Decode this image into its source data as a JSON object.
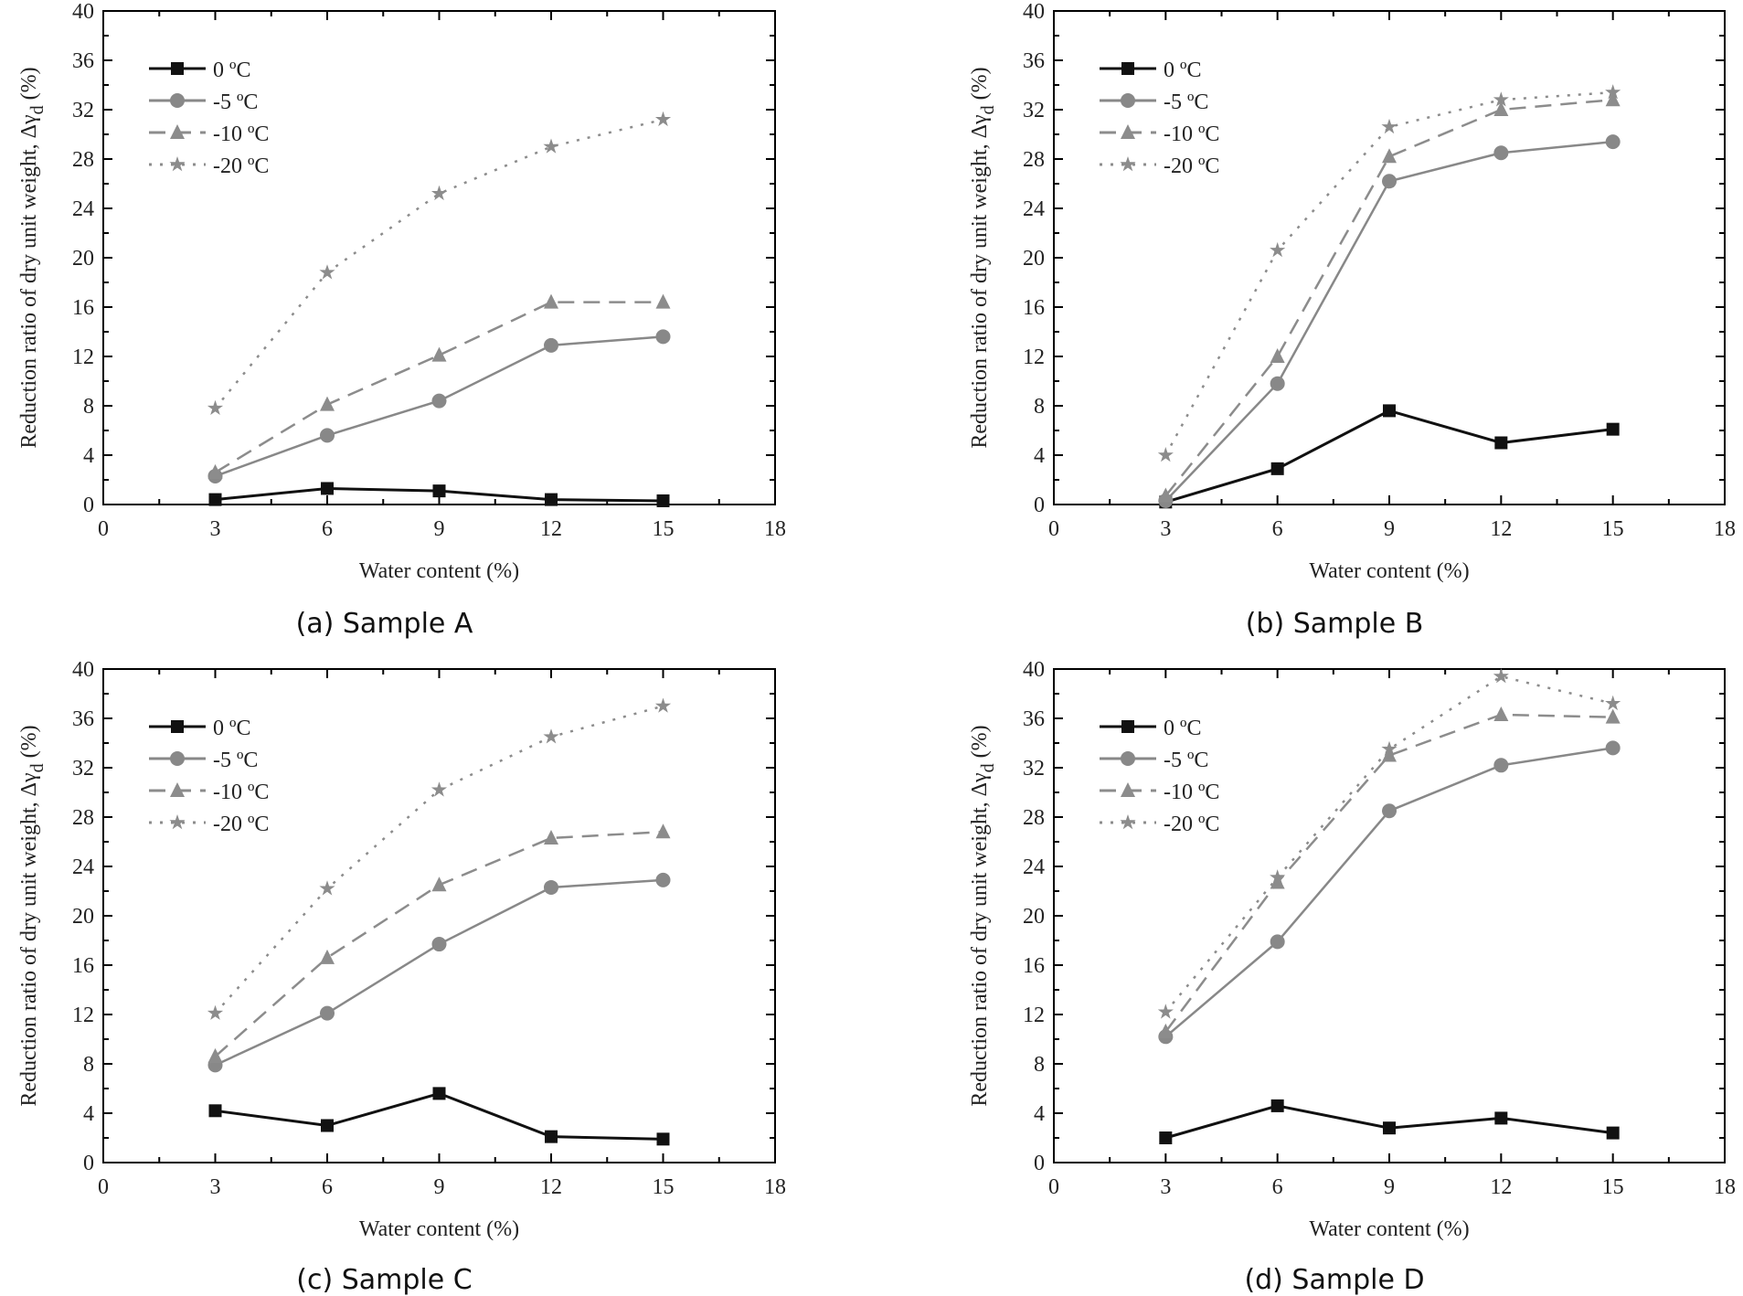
{
  "chart_data": [
    {
      "type": "line",
      "title": "(a) Sample A",
      "xlabel": "Water content (%)",
      "ylabel": {
        "main": "Reduction ratio of dry unit weight, Δγ",
        "sub": "d",
        "suffix": " (%)"
      },
      "xlim": [
        0,
        18
      ],
      "ylim": [
        0,
        40
      ],
      "xticks": [
        0,
        3,
        6,
        9,
        12,
        15,
        18
      ],
      "yticks": [
        0,
        4,
        8,
        12,
        16,
        20,
        24,
        28,
        32,
        36,
        40
      ],
      "x": [
        3,
        6,
        9,
        12,
        15
      ],
      "legend_position": "top-left",
      "series": [
        {
          "name": "0 ºC",
          "values": [
            0.4,
            1.3,
            1.1,
            0.4,
            0.3
          ]
        },
        {
          "name": "-5 ºC",
          "values": [
            2.3,
            5.6,
            8.4,
            12.9,
            13.6
          ]
        },
        {
          "name": "-10 ºC",
          "values": [
            2.6,
            8.1,
            12.1,
            16.4,
            16.4
          ]
        },
        {
          "name": "-20 ºC",
          "values": [
            7.8,
            18.8,
            25.2,
            29.0,
            31.2
          ]
        }
      ]
    },
    {
      "type": "line",
      "title": "(b) Sample B",
      "xlabel": "Water content (%)",
      "ylabel": {
        "main": "Reduction ratio of dry unit weight, Δγ",
        "sub": "d",
        "suffix": " (%)"
      },
      "xlim": [
        0,
        18
      ],
      "ylim": [
        0,
        40
      ],
      "xticks": [
        0,
        3,
        6,
        9,
        12,
        15,
        18
      ],
      "yticks": [
        0,
        4,
        8,
        12,
        16,
        20,
        24,
        28,
        32,
        36,
        40
      ],
      "x": [
        3,
        6,
        9,
        12,
        15
      ],
      "legend_position": "top-left",
      "series": [
        {
          "name": "0 ºC",
          "values": [
            0.2,
            2.9,
            7.6,
            5.0,
            6.1
          ]
        },
        {
          "name": "-5 ºC",
          "values": [
            0.3,
            9.8,
            26.2,
            28.5,
            29.4
          ]
        },
        {
          "name": "-10 ºC",
          "values": [
            0.7,
            12.0,
            28.2,
            32.0,
            32.8
          ]
        },
        {
          "name": "-20 ºC",
          "values": [
            4.0,
            20.6,
            30.6,
            32.8,
            33.4
          ]
        }
      ]
    },
    {
      "type": "line",
      "title": "(c) Sample C",
      "xlabel": "Water content (%)",
      "ylabel": {
        "main": "Reduction ratio of dry unit weight, Δγ",
        "sub": "d",
        "suffix": " (%)"
      },
      "xlim": [
        0,
        18
      ],
      "ylim": [
        0,
        40
      ],
      "xticks": [
        0,
        3,
        6,
        9,
        12,
        15,
        18
      ],
      "yticks": [
        0,
        4,
        8,
        12,
        16,
        20,
        24,
        28,
        32,
        36,
        40
      ],
      "x": [
        3,
        6,
        9,
        12,
        15
      ],
      "legend_position": "top-left",
      "series": [
        {
          "name": "0 ºC",
          "values": [
            4.2,
            3.0,
            5.6,
            2.1,
            1.9
          ]
        },
        {
          "name": "-5 ºC",
          "values": [
            7.9,
            12.1,
            17.7,
            22.3,
            22.9
          ]
        },
        {
          "name": "-10 ºC",
          "values": [
            8.6,
            16.6,
            22.5,
            26.3,
            26.8
          ]
        },
        {
          "name": "-20 ºC",
          "values": [
            12.1,
            22.2,
            30.2,
            34.5,
            37.0
          ]
        }
      ]
    },
    {
      "type": "line",
      "title": "(d) Sample D",
      "xlabel": "Water content (%)",
      "ylabel": {
        "main": "Reduction ratio of dry unit weight, Δγ",
        "sub": "d",
        "suffix": " (%)"
      },
      "xlim": [
        0,
        18
      ],
      "ylim": [
        0,
        40
      ],
      "xticks": [
        0,
        3,
        6,
        9,
        12,
        15,
        18
      ],
      "yticks": [
        0,
        4,
        8,
        12,
        16,
        20,
        24,
        28,
        32,
        36,
        40
      ],
      "x": [
        3,
        6,
        9,
        12,
        15
      ],
      "legend_position": "top-left",
      "series": [
        {
          "name": "0 ºC",
          "values": [
            2.0,
            4.6,
            2.8,
            3.6,
            2.4
          ]
        },
        {
          "name": "-5 ºC",
          "values": [
            10.2,
            17.9,
            28.5,
            32.2,
            33.6
          ]
        },
        {
          "name": "-10 ºC",
          "values": [
            10.6,
            22.7,
            33.0,
            36.3,
            36.1
          ]
        },
        {
          "name": "-20 ºC",
          "values": [
            12.2,
            23.1,
            33.5,
            39.4,
            37.2
          ]
        }
      ]
    }
  ],
  "styles": {
    "series_colors": [
      "#111111",
      "#888888",
      "#8c8c8c",
      "#8c8c8c"
    ],
    "series_markers": [
      "square",
      "circle",
      "triangle",
      "star"
    ],
    "series_dash": [
      "solid",
      "solid",
      "dashed",
      "dotted"
    ]
  }
}
